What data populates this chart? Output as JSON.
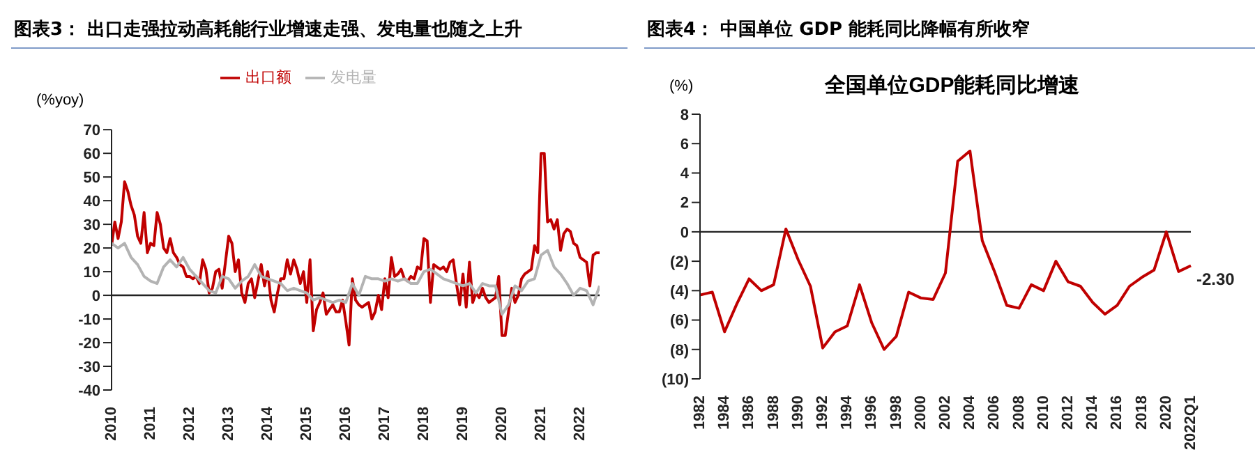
{
  "chart_data": [
    {
      "type": "line",
      "title": "图表3：  出口走强拉动高耗能行业增速走强、发电量也随之上升",
      "ylabel": "(%yoy)",
      "legend": "top",
      "ref_lines": [
        {
          "axis": "y",
          "value": 0,
          "color": "#222222"
        }
      ],
      "xlim": [
        "2010-01",
        "2022-07"
      ],
      "xticks": [
        "2010",
        "2011",
        "2012",
        "2013",
        "2014",
        "2015",
        "2016",
        "2017",
        "2018",
        "2019",
        "2020",
        "2021",
        "2022"
      ],
      "ylim": [
        -40,
        70
      ],
      "yticks": [
        -40,
        -30,
        -20,
        -10,
        0,
        10,
        20,
        30,
        40,
        50,
        60,
        70
      ],
      "marker": "none",
      "line_style": "solid",
      "series": [
        {
          "name": "出口额",
          "color": "#c00000",
          "x": [
            "2010-01",
            "2010-02",
            "2010-03",
            "2010-04",
            "2010-05",
            "2010-06",
            "2010-07",
            "2010-08",
            "2010-09",
            "2010-10",
            "2010-11",
            "2010-12",
            "2011-01",
            "2011-02",
            "2011-03",
            "2011-04",
            "2011-05",
            "2011-06",
            "2011-07",
            "2011-08",
            "2011-09",
            "2011-10",
            "2011-11",
            "2011-12",
            "2012-01",
            "2012-02",
            "2012-03",
            "2012-04",
            "2012-05",
            "2012-06",
            "2012-07",
            "2012-08",
            "2012-09",
            "2012-10",
            "2012-11",
            "2012-12",
            "2013-01",
            "2013-02",
            "2013-03",
            "2013-04",
            "2013-05",
            "2013-06",
            "2013-07",
            "2013-08",
            "2013-09",
            "2013-10",
            "2013-11",
            "2013-12",
            "2014-01",
            "2014-02",
            "2014-03",
            "2014-04",
            "2014-05",
            "2014-06",
            "2014-07",
            "2014-08",
            "2014-09",
            "2014-10",
            "2014-11",
            "2014-12",
            "2015-01",
            "2015-02",
            "2015-03",
            "2015-04",
            "2015-05",
            "2015-06",
            "2015-07",
            "2015-08",
            "2015-09",
            "2015-10",
            "2015-11",
            "2015-12",
            "2016-01",
            "2016-02",
            "2016-03",
            "2016-04",
            "2016-05",
            "2016-06",
            "2016-07",
            "2016-08",
            "2016-09",
            "2016-10",
            "2016-11",
            "2016-12",
            "2017-01",
            "2017-02",
            "2017-03",
            "2017-04",
            "2017-05",
            "2017-06",
            "2017-07",
            "2017-08",
            "2017-09",
            "2017-10",
            "2017-11",
            "2017-12",
            "2018-01",
            "2018-02",
            "2018-03",
            "2018-04",
            "2018-05",
            "2018-06",
            "2018-07",
            "2018-08",
            "2018-09",
            "2018-10",
            "2018-11",
            "2018-12",
            "2019-01",
            "2019-02",
            "2019-03",
            "2019-04",
            "2019-05",
            "2019-06",
            "2019-07",
            "2019-08",
            "2019-09",
            "2019-11",
            "2019-12",
            "2020-01",
            "2020-02",
            "2020-03",
            "2020-04",
            "2020-05",
            "2020-06",
            "2020-07",
            "2020-08",
            "2020-09",
            "2020-10",
            "2020-11",
            "2020-12",
            "2021-01",
            "2021-02",
            "2021-03",
            "2021-04",
            "2021-05",
            "2021-06",
            "2021-07",
            "2021-08",
            "2021-09",
            "2021-10",
            "2021-11",
            "2021-12",
            "2022-01",
            "2022-02",
            "2022-03",
            "2022-04",
            "2022-05",
            "2022-06",
            "2022-07"
          ],
          "values": [
            21,
            31,
            24,
            31,
            48,
            44,
            38,
            34,
            25,
            22,
            35,
            18,
            22,
            21,
            35,
            30,
            20,
            18,
            24,
            18,
            16,
            13,
            12,
            8,
            8,
            7,
            8,
            5,
            15,
            11,
            1,
            3,
            10,
            11,
            3,
            14,
            25,
            22,
            10,
            15,
            1,
            -3,
            5,
            7,
            -1,
            6,
            13,
            4,
            10,
            -2,
            -7,
            1,
            7,
            7,
            15,
            9,
            15,
            11,
            5,
            10,
            -3,
            15,
            -15,
            -6,
            -3,
            1,
            -8,
            -6,
            -4,
            -7,
            -7,
            -2,
            -11,
            -21,
            7,
            -2,
            -4,
            -5,
            -4,
            -3,
            -10,
            -7,
            0,
            -6,
            7,
            -1,
            16,
            8,
            9,
            11,
            7,
            6,
            8,
            7,
            12,
            11,
            24,
            23,
            -3,
            13,
            12,
            11,
            12,
            10,
            14,
            15,
            5,
            -4,
            9,
            -5,
            14,
            -3,
            1,
            -1,
            3,
            -1,
            -3,
            -1,
            8,
            -17,
            -17,
            -7,
            3,
            -3,
            0,
            7,
            9,
            10,
            11,
            21,
            18,
            60,
            60,
            31,
            32,
            28,
            32,
            19,
            26,
            28,
            27,
            22,
            21,
            16,
            15,
            14,
            4,
            17,
            18,
            18
          ]
        },
        {
          "name": "发电量",
          "color": "#b3b3b3",
          "x": [
            "2010-01",
            "2010-03",
            "2010-05",
            "2010-07",
            "2010-09",
            "2010-11",
            "2011-01",
            "2011-03",
            "2011-05",
            "2011-07",
            "2011-09",
            "2011-11",
            "2012-01",
            "2012-03",
            "2012-05",
            "2012-07",
            "2012-09",
            "2012-11",
            "2013-01",
            "2013-03",
            "2013-05",
            "2013-07",
            "2013-09",
            "2013-11",
            "2014-01",
            "2014-03",
            "2014-05",
            "2014-07",
            "2014-09",
            "2014-11",
            "2015-01",
            "2015-03",
            "2015-05",
            "2015-07",
            "2015-09",
            "2015-11",
            "2016-01",
            "2016-03",
            "2016-05",
            "2016-07",
            "2016-09",
            "2016-11",
            "2017-01",
            "2017-03",
            "2017-05",
            "2017-07",
            "2017-09",
            "2017-11",
            "2018-01",
            "2018-03",
            "2018-05",
            "2018-07",
            "2018-09",
            "2018-11",
            "2019-01",
            "2019-03",
            "2019-05",
            "2019-07",
            "2019-09",
            "2019-11",
            "2020-01",
            "2020-03",
            "2020-05",
            "2020-07",
            "2020-09",
            "2020-11",
            "2021-01",
            "2021-03",
            "2021-05",
            "2021-07",
            "2021-09",
            "2021-11",
            "2022-01",
            "2022-03",
            "2022-05",
            "2022-07"
          ],
          "values": [
            22,
            20,
            22,
            16,
            13,
            8,
            6,
            5,
            12,
            15,
            12,
            16,
            11,
            8,
            5,
            2,
            1,
            8,
            7,
            3,
            6,
            8,
            13,
            8,
            7,
            6,
            5,
            2,
            3,
            2,
            1,
            -2,
            -1,
            -2,
            -3,
            -2,
            -3,
            5,
            0,
            8,
            7,
            7,
            6,
            7,
            6,
            7,
            5,
            5,
            10,
            11,
            9,
            7,
            6,
            5,
            4,
            5,
            1,
            5,
            4,
            4,
            -8,
            -4,
            4,
            2,
            6,
            7,
            17,
            19,
            12,
            9,
            5,
            0,
            3,
            2,
            -4,
            4
          ]
        }
      ]
    },
    {
      "type": "line",
      "title": "图表4：  中国单位 GDP 能耗同比降幅有所收窄",
      "subtitle": "全国单位GDP能耗同比增速",
      "ylabel": "(%)",
      "ref_lines": [
        {
          "axis": "y",
          "value": 0,
          "color": "#222222"
        }
      ],
      "legend": false,
      "marker": "none",
      "line_style": "solid",
      "categories": [
        "1982",
        null,
        "1984",
        null,
        "1986",
        null,
        "1988",
        null,
        "1990",
        null,
        "1992",
        null,
        "1994",
        null,
        "1996",
        null,
        "1998",
        null,
        "2000",
        null,
        "2002",
        null,
        "2004",
        null,
        "2006",
        null,
        "2008",
        null,
        "2010",
        null,
        "2012",
        null,
        "2014",
        null,
        "2016",
        null,
        "2018",
        null,
        "2020",
        null,
        "2022Q1"
      ],
      "ylim": [
        -10,
        8
      ],
      "yticks": [
        {
          "value": -10,
          "label": "(10)"
        },
        {
          "value": -8,
          "label": "(8)"
        },
        {
          "value": -6,
          "label": "(6)"
        },
        {
          "value": -4,
          "label": "(4)"
        },
        {
          "value": -2,
          "label": "(2)"
        },
        0,
        2,
        4,
        6,
        8
      ],
      "series": [
        {
          "color": "#c00000",
          "values": [
            -4.3,
            -4.1,
            -6.8,
            -4.9,
            -3.2,
            -4.0,
            -3.6,
            0.2,
            -1.9,
            -3.7,
            -7.9,
            -6.8,
            -6.4,
            -3.6,
            -6.2,
            -8.0,
            -7.1,
            -4.1,
            -4.5,
            -4.6,
            -2.8,
            4.8,
            5.5,
            -0.6,
            -2.7,
            -5.0,
            -5.2,
            -3.6,
            -4.0,
            -2.0,
            -3.4,
            -3.7,
            -4.8,
            -5.6,
            -5.0,
            -3.7,
            -3.1,
            -2.6,
            0.0,
            -2.7,
            -2.3
          ],
          "value_labels": [
            null,
            null,
            null,
            null,
            null,
            null,
            null,
            null,
            null,
            null,
            null,
            null,
            null,
            null,
            null,
            null,
            null,
            null,
            null,
            null,
            null,
            null,
            null,
            null,
            null,
            null,
            null,
            null,
            null,
            null,
            null,
            null,
            null,
            null,
            null,
            null,
            null,
            null,
            null,
            null,
            "-2.30"
          ]
        }
      ]
    }
  ]
}
